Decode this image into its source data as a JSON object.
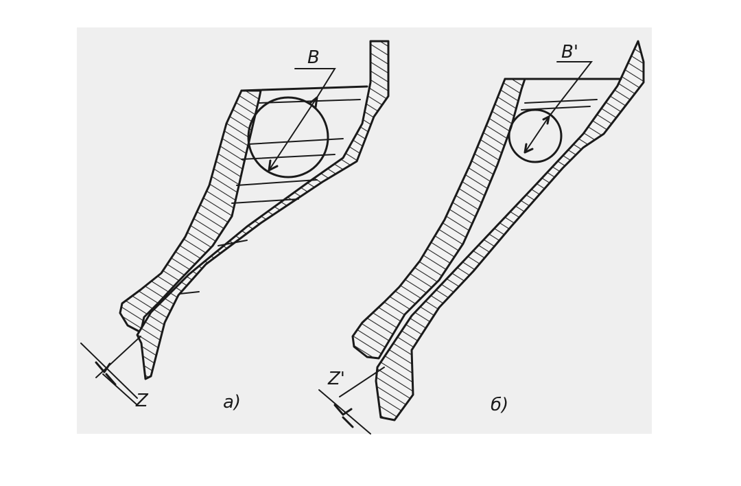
{
  "figure_a": {
    "width_label": "B",
    "gap_label": "Z",
    "caption": "а)"
  },
  "figure_b": {
    "width_label": "B'",
    "gap_label": "Z'",
    "caption": "б)"
  }
}
